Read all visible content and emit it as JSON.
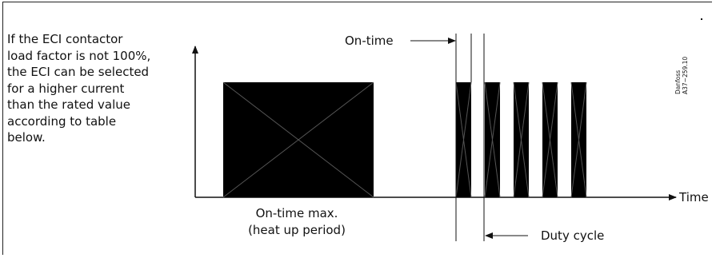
{
  "description_lines": [
    "If the ECI contactor",
    "load factor is not 100%,",
    "the ECI can be selected",
    "for a higher current",
    "than the rated value",
    "according to table",
    "below."
  ],
  "labels": {
    "on_time": "On-time",
    "on_time_max_1": "On-time max.",
    "on_time_max_2": "(heat up period)",
    "duty_cycle": "Duty cycle",
    "time_axis": "Time",
    "ref_brand": "Danfoss",
    "ref_code": "A37−259.10"
  },
  "colors": {
    "fill": "#000000",
    "line": "#111111"
  }
}
